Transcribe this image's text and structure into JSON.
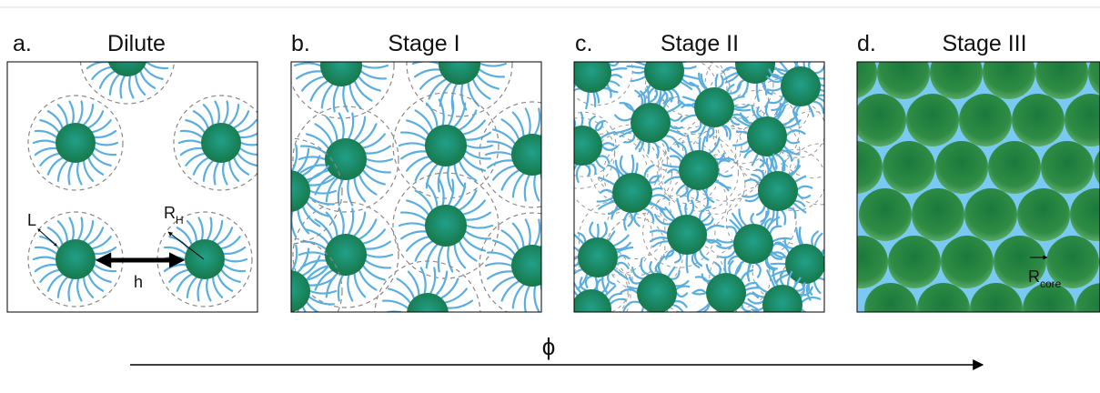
{
  "panels": [
    {
      "letter": "a.",
      "title": "Dilute"
    },
    {
      "letter": "b.",
      "title": "Stage I"
    },
    {
      "letter": "c.",
      "title": "Stage II"
    },
    {
      "letter": "d.",
      "title": "Stage III"
    }
  ],
  "annotations": {
    "L": "L",
    "RH": "R",
    "RH_sub": "H",
    "h": "h",
    "Rcore": "R",
    "Rcore_sub": "core"
  },
  "axis_symbol": "ϕ"
}
